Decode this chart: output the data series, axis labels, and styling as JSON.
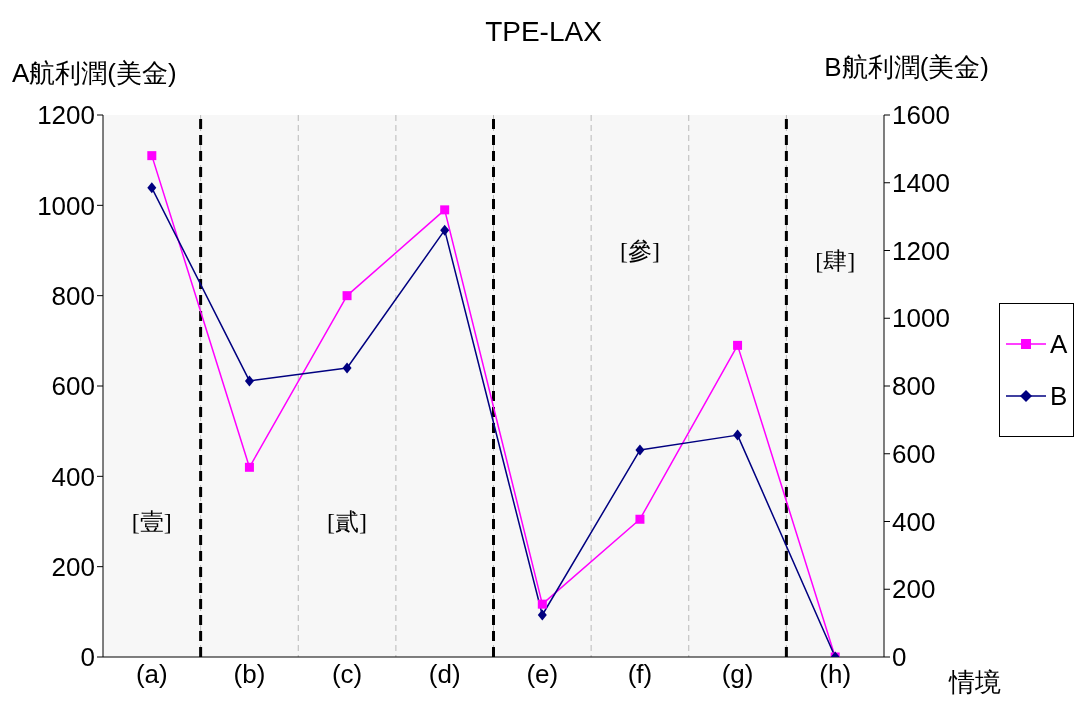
{
  "chart_data": {
    "type": "line",
    "title": "TPE-LAX",
    "ylabel": "A航利潤(美金)",
    "y2label": "B航利潤(美金)",
    "xlabel": "情境",
    "categories": [
      "(a)",
      "(b)",
      "(c)",
      "(d)",
      "(e)",
      "(f)",
      "(g)",
      "(h)"
    ],
    "ylim": [
      0,
      1200
    ],
    "yticks": [
      0,
      200,
      400,
      600,
      800,
      1000,
      1200
    ],
    "y2lim": [
      0,
      1600
    ],
    "y2ticks": [
      0,
      200,
      400,
      600,
      800,
      1000,
      1200,
      1400,
      1600
    ],
    "series": [
      {
        "name": "A",
        "color": "#ff00ff",
        "marker": "square",
        "values": [
          1110,
          420,
          800,
          990,
          117,
          305,
          690,
          0
        ]
      },
      {
        "name": "B",
        "color": "#000080",
        "marker": "diamond",
        "axis": "y2",
        "values": [
          1385,
          815,
          853,
          1260,
          124,
          611,
          655,
          0
        ]
      }
    ],
    "bands": [
      {
        "axis": "x",
        "from": "(a)",
        "to": "(a)",
        "label": "[壹]",
        "color": "#000000"
      },
      {
        "axis": "x",
        "from": "(b)",
        "to": "(d)",
        "label": "[貳]",
        "color": "#000000"
      },
      {
        "axis": "x",
        "from": "(e)",
        "to": "(g)",
        "label": "[參]",
        "color": "#000000"
      },
      {
        "axis": "x",
        "from": "(h)",
        "to": "(h)",
        "label": "[肆]",
        "color": "#000000"
      }
    ],
    "grid": "x",
    "legend": "right",
    "line_style": "solid"
  }
}
